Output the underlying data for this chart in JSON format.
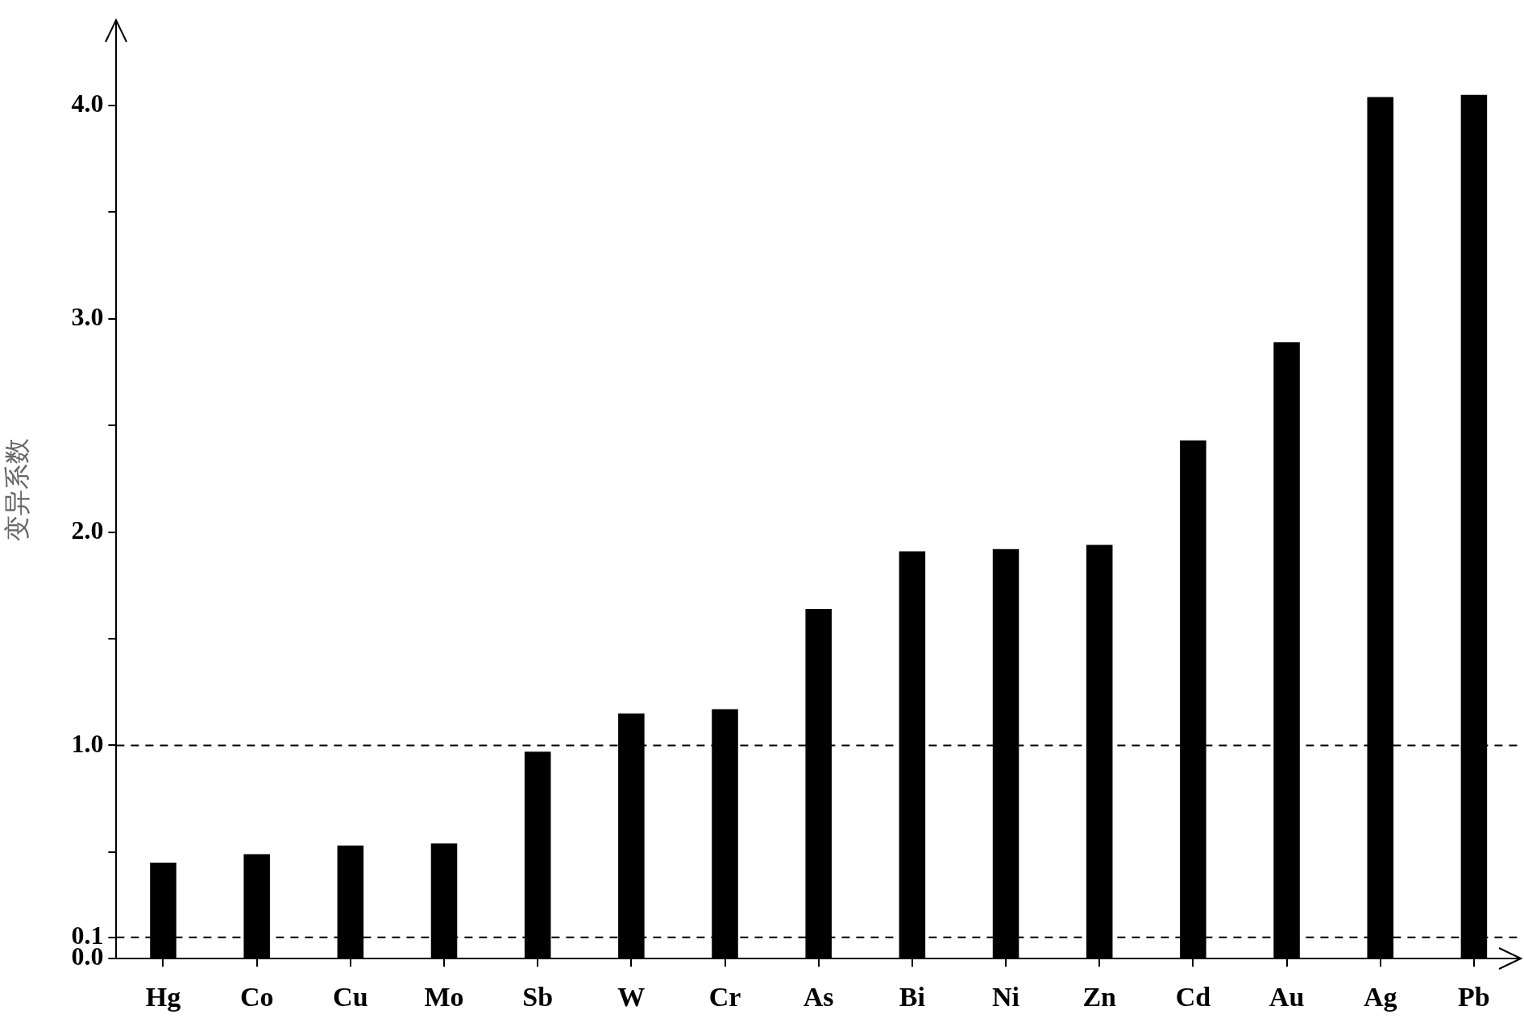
{
  "chart_data": {
    "type": "bar",
    "ylabel": "变异系数",
    "categories": [
      "Hg",
      "Co",
      "Cu",
      "Mo",
      "Sb",
      "W",
      "Cr",
      "As",
      "Bi",
      "Ni",
      "Zn",
      "Cd",
      "Au",
      "Ag",
      "Pb"
    ],
    "values": [
      0.45,
      0.49,
      0.53,
      0.54,
      0.97,
      1.15,
      1.17,
      1.64,
      1.91,
      1.92,
      1.94,
      2.43,
      2.89,
      4.04,
      4.05
    ],
    "color": "#000000",
    "ylim": [
      0,
      4.4
    ],
    "yticks": [
      {
        "value": 0,
        "label": "0.0"
      },
      {
        "value": 0.1,
        "label": "0.1"
      },
      {
        "value": 0.5,
        "label": null
      },
      {
        "value": 1,
        "label": "1.0"
      },
      {
        "value": 1.5,
        "label": null
      },
      {
        "value": 2,
        "label": "2.0"
      },
      {
        "value": 2.5,
        "label": null
      },
      {
        "value": 3,
        "label": "3.0"
      },
      {
        "value": 3.5,
        "label": null
      },
      {
        "value": 4,
        "label": "4.0"
      }
    ],
    "ref_lines": [
      {
        "axis": "y",
        "value": 1,
        "line_style": "dashed",
        "color": "#000000"
      },
      {
        "axis": "y",
        "value": 0.1,
        "line_style": "dashed",
        "color": "#000000"
      }
    ],
    "grid": false,
    "legend": false
  }
}
